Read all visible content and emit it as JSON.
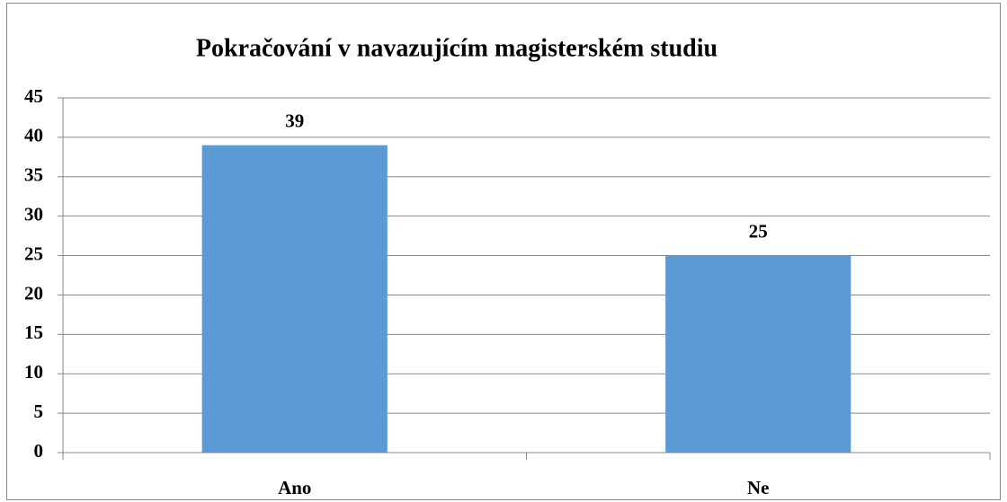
{
  "chart_data": {
    "type": "bar",
    "title": "Pokračování v navazujícím magisterském studiu",
    "categories": [
      "Ano",
      "Ne"
    ],
    "values": [
      39,
      25
    ],
    "color": "#5b9bd5",
    "ylim": [
      0,
      45
    ],
    "yticks": [
      0,
      5,
      10,
      15,
      20,
      25,
      30,
      35,
      40,
      45
    ],
    "grid": true,
    "data_labels": true
  }
}
